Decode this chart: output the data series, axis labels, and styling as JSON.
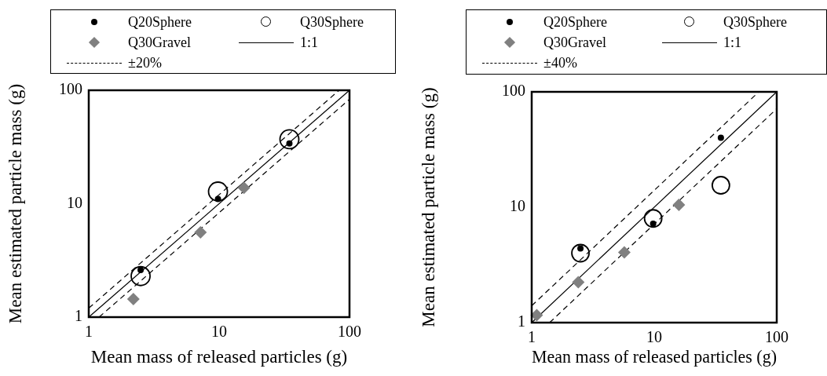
{
  "chart_data": [
    {
      "type": "scatter",
      "xlabel": "Mean mass of released particles (g)",
      "ylabel": "Mean estimated particle mass (g)",
      "log": "xy",
      "xlim": [
        1,
        100
      ],
      "ylim": [
        1,
        100
      ],
      "xticks": [
        1,
        10,
        100
      ],
      "yticks": [
        1,
        10,
        100
      ],
      "legend": "top",
      "series": [
        {
          "name": "Q20Sphere",
          "type": "scatter",
          "marker": "circle",
          "color": "#000000",
          "x": [
            2.5,
            9.8,
            34.6
          ],
          "values": [
            2.6,
            11,
            34
          ]
        },
        {
          "name": "Q30Sphere",
          "type": "scatter",
          "marker": "circle",
          "color": "#000000",
          "x": [
            2.5,
            9.8,
            34.6
          ],
          "values": [
            2.3,
            12.8,
            37
          ]
        },
        {
          "name": "Q30Gravel",
          "type": "scatter",
          "marker": "diamond",
          "color": "#808080",
          "x": [
            2.2,
            7.2,
            15.5
          ],
          "values": [
            1.44,
            5.6,
            13.8
          ]
        },
        {
          "name": "1:1",
          "type": "line",
          "marker": "none",
          "line_style": "solid",
          "color": "#000000",
          "x": [
            1,
            100
          ],
          "values": [
            1,
            100
          ]
        },
        {
          "name": "±20%",
          "type": "line",
          "marker": "none",
          "line_style": "dashed",
          "color": "#000000",
          "x": [
            1,
            83.3
          ],
          "values": [
            1.2,
            100
          ]
        },
        {
          "type": "line",
          "marker": "none",
          "line_style": "dashed",
          "color": "#000000",
          "x": [
            1.2,
            100
          ],
          "values": [
            1,
            83.3
          ]
        }
      ]
    },
    {
      "type": "scatter",
      "xlabel": "Mean mass of released particles (g)",
      "ylabel": "Mean estimated particle mass (g)",
      "log": "xy",
      "xlim": [
        1,
        100
      ],
      "ylim": [
        1,
        100
      ],
      "xticks": [
        1,
        10,
        100
      ],
      "yticks": [
        1,
        10,
        100
      ],
      "legend": "top",
      "series": [
        {
          "name": "Q20Sphere",
          "type": "scatter",
          "marker": "circle",
          "color": "#000000",
          "x": [
            2.5,
            9.8,
            35
          ],
          "values": [
            4.4,
            7.2,
            40
          ]
        },
        {
          "name": "Q30Sphere",
          "type": "scatter",
          "marker": "circle",
          "color": "#000000",
          "x": [
            2.5,
            9.8,
            35
          ],
          "values": [
            4,
            8,
            15.5
          ]
        },
        {
          "name": "Q30Gravel",
          "type": "scatter",
          "marker": "diamond",
          "color": "#808080",
          "x": [
            1.1,
            2.4,
            5.7,
            15.9
          ],
          "values": [
            1.16,
            2.24,
            4.06,
            10.5
          ]
        },
        {
          "name": "1:1",
          "type": "line",
          "marker": "none",
          "line_style": "solid",
          "color": "#000000",
          "x": [
            1,
            100
          ],
          "values": [
            1,
            100
          ]
        },
        {
          "name": "±40%",
          "type": "line",
          "marker": "none",
          "line_style": "dashed",
          "color": "#000000",
          "x": [
            1,
            71.4
          ],
          "values": [
            1.4,
            100
          ]
        },
        {
          "type": "line",
          "marker": "none",
          "line_style": "dashed",
          "color": "#000000",
          "x": [
            1.4,
            100
          ],
          "values": [
            1,
            71.4
          ]
        }
      ]
    }
  ]
}
